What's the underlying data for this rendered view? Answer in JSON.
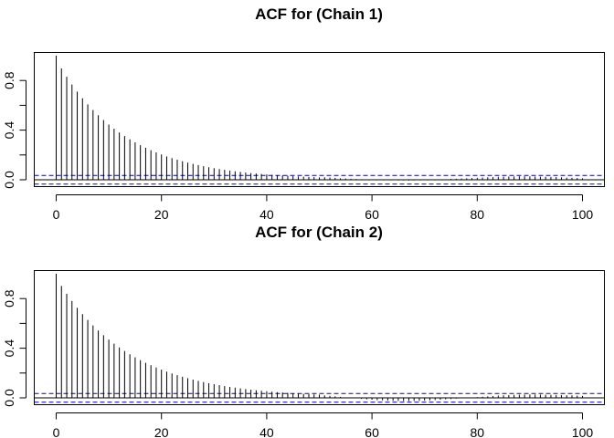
{
  "chart_data": [
    {
      "type": "bar",
      "title": "ACF for (Chain 1)",
      "xlabel": "",
      "ylabel": "",
      "xlim": [
        0,
        100
      ],
      "ylim": [
        -0.05,
        1.0
      ],
      "x_ticks": [
        0,
        20,
        40,
        60,
        80,
        100
      ],
      "y_ticks": [
        0.0,
        0.4,
        0.8
      ],
      "y_ticks_minor": [
        0.2,
        0.6
      ],
      "ci": [
        0.035,
        -0.035
      ],
      "grid": false,
      "decay_rate": 0.925,
      "tail_values": [
        0.02,
        0.018,
        0.015,
        0.012,
        0.01,
        0.008,
        0.006,
        0.004,
        0.003,
        0.002,
        0.0,
        -0.002,
        -0.003,
        -0.004,
        -0.005,
        -0.005,
        -0.006,
        -0.005,
        -0.004,
        -0.003,
        -0.002,
        0.0,
        0.002,
        0.004,
        0.006,
        0.008,
        0.01,
        0.012,
        0.014,
        0.016,
        0.018,
        0.02,
        0.022,
        0.024,
        0.025,
        0.026,
        0.027,
        0.028,
        0.028,
        0.027,
        0.026,
        0.025,
        0.024,
        0.023,
        0.022,
        0.02,
        0.018,
        0.016,
        0.014,
        0.012
      ],
      "tail_start_lag": 51
    },
    {
      "type": "bar",
      "title": "ACF for (Chain 2)",
      "xlabel": "",
      "ylabel": "",
      "xlim": [
        0,
        100
      ],
      "ylim": [
        -0.05,
        1.0
      ],
      "x_ticks": [
        0,
        20,
        40,
        60,
        80,
        100
      ],
      "y_ticks": [
        0.0,
        0.4,
        0.8
      ],
      "y_ticks_minor": [
        0.2,
        0.6
      ],
      "ci": [
        0.035,
        -0.035
      ],
      "grid": false,
      "decay_rate": 0.93,
      "tail_values": [
        0.02,
        0.016,
        0.012,
        0.008,
        0.004,
        0.0,
        -0.004,
        -0.008,
        -0.012,
        -0.015,
        -0.018,
        -0.02,
        -0.022,
        -0.024,
        -0.025,
        -0.026,
        -0.026,
        -0.025,
        -0.024,
        -0.022,
        -0.02,
        -0.018,
        -0.015,
        -0.012,
        -0.009,
        -0.006,
        -0.003,
        0.0,
        0.003,
        0.006,
        0.009,
        0.012,
        0.015,
        0.018,
        0.02,
        0.022,
        0.024,
        0.025,
        0.026,
        0.027,
        0.027,
        0.026,
        0.025,
        0.024,
        0.023,
        0.022,
        0.021,
        0.02,
        0.018,
        0.016
      ],
      "tail_start_lag": 51
    }
  ]
}
